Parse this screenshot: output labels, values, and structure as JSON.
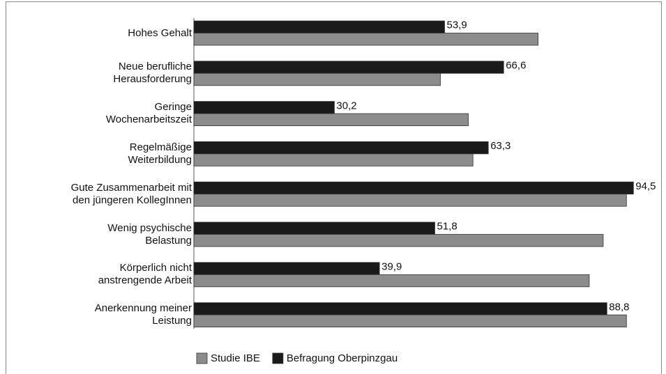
{
  "chart_data": {
    "type": "hbar",
    "categories": [
      "Hohes Gehalt",
      "Neue berufliche\nHerausforderung",
      "Geringe\nWochenarbeitszeit",
      "Regelmäßige\nWeiterbildung",
      "Gute Zusammenarbeit mit\nden jüngeren KollegInnen",
      "Wenig psychische\nBelastung",
      "Körperlich nicht\nanstrengende Arbeit",
      "Anerkennung meiner\nLeistung"
    ],
    "series": [
      {
        "name": "Studie IBE",
        "color": "#8c8c8c",
        "values": [
          74,
          53,
          59,
          60,
          93,
          88,
          85,
          93
        ]
      },
      {
        "name": "Befragung Oberpinzgau",
        "color": "#1a1a1a",
        "values": [
          53.9,
          66.6,
          30.2,
          63.3,
          94.5,
          51.8,
          39.9,
          88.8
        ],
        "value_labels": [
          "53,9",
          "66,6",
          "30,2",
          "63,3",
          "94,5",
          "51,8",
          "39,9",
          "88,8"
        ]
      }
    ],
    "xlim": [
      0,
      100
    ]
  }
}
